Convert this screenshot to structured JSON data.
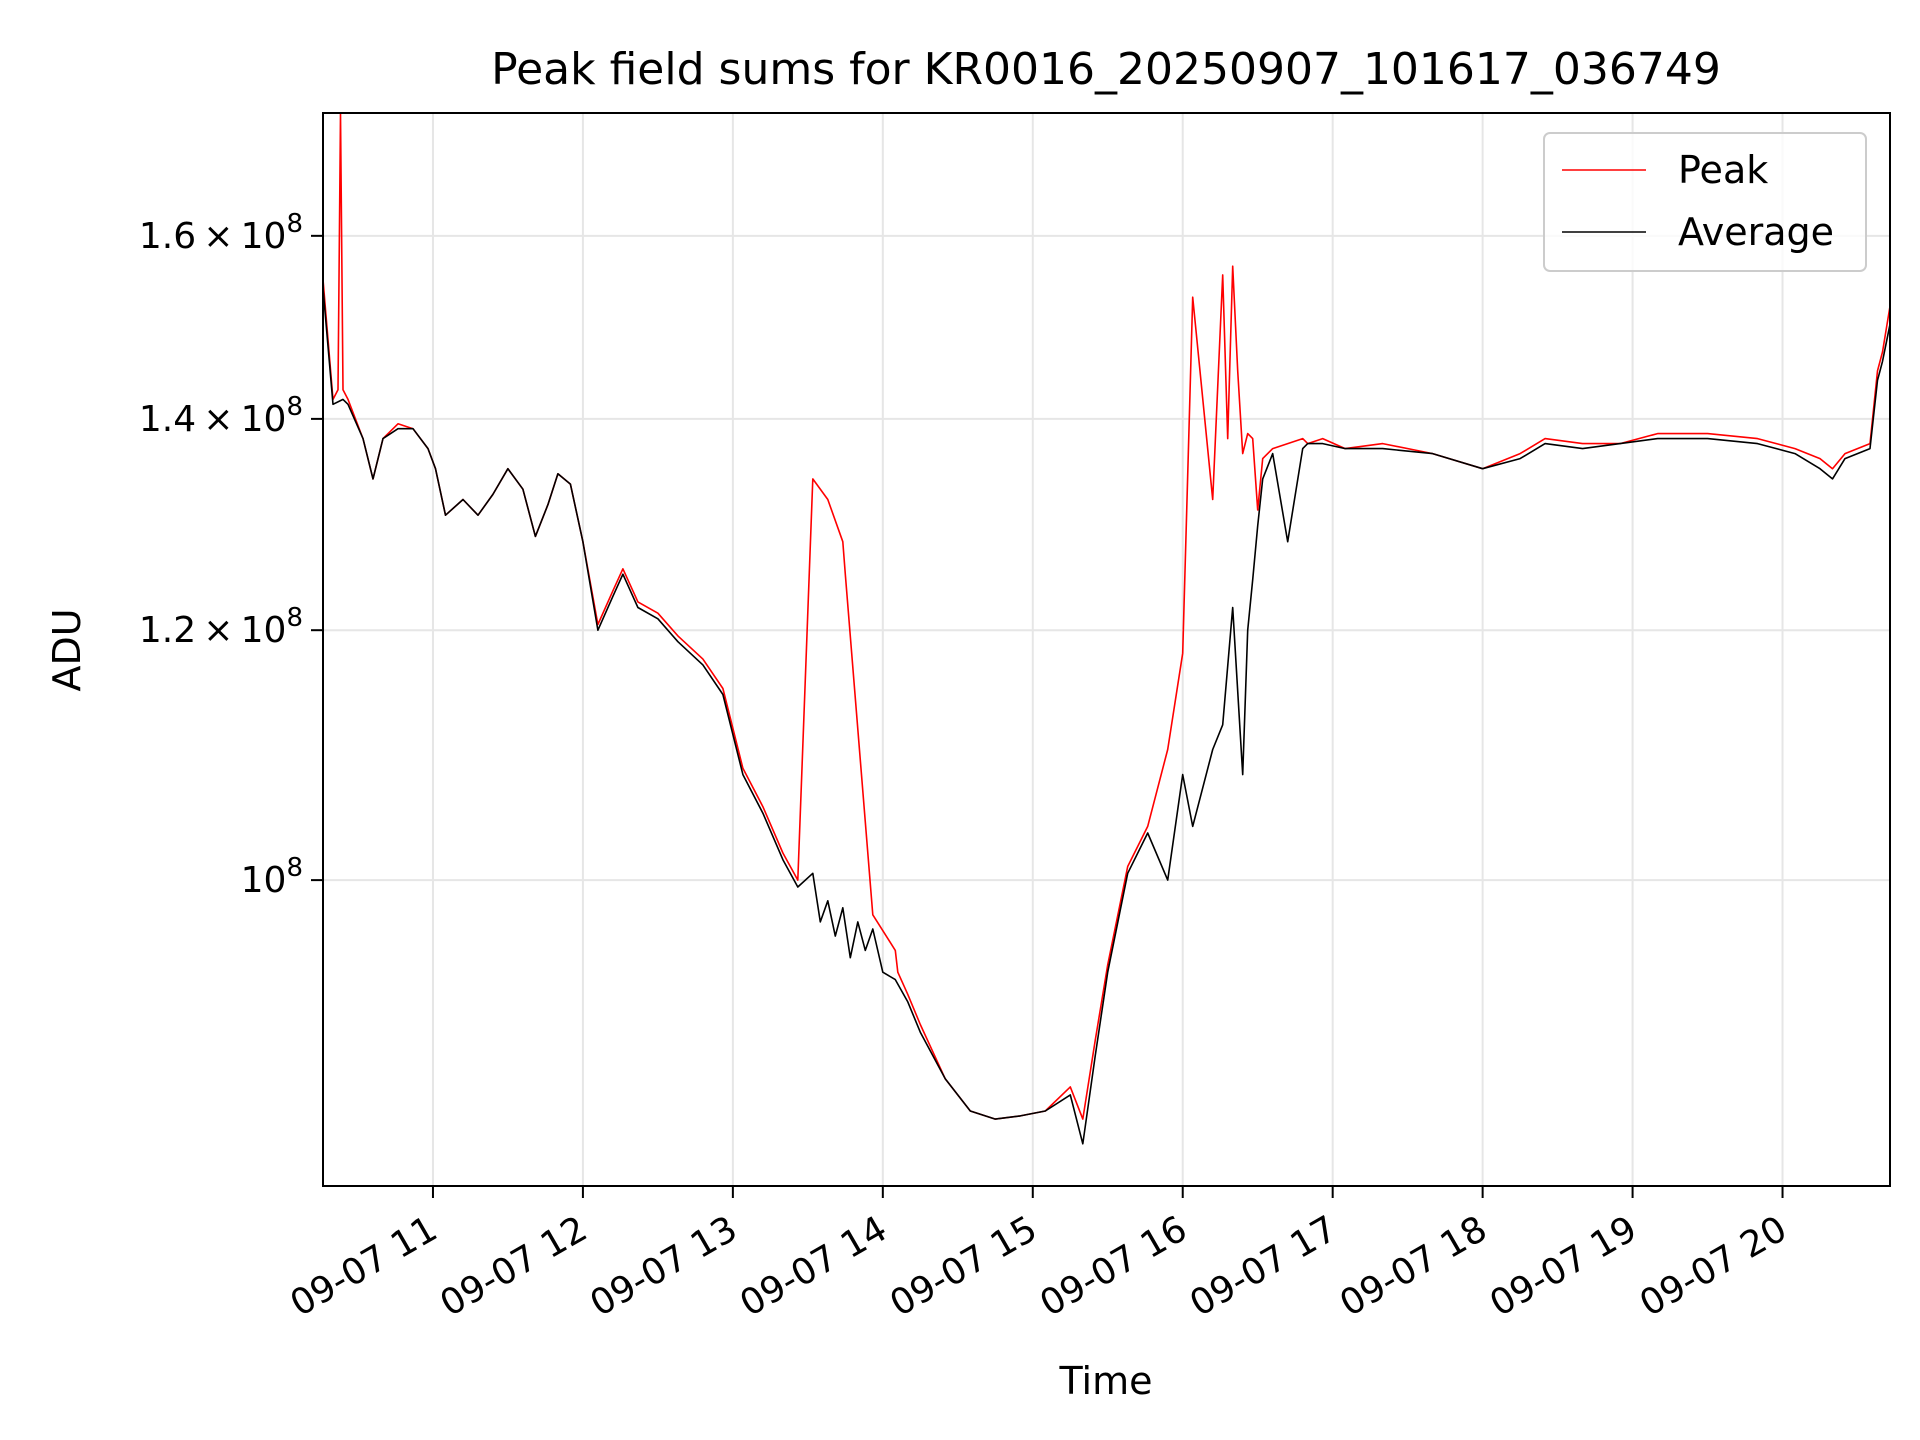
{
  "chart_data": {
    "type": "line",
    "title": "Peak field sums for KR0016_20250907_101617_036749",
    "xlabel": "Time",
    "ylabel": "ADU",
    "yscale": "log",
    "xlim": [
      "2025-09-07 10:16",
      "2025-09-07 20:43"
    ],
    "ylim": [
      80000000,
      175000000
    ],
    "grid": true,
    "legend_position": "top-right",
    "x_ticks": [
      {
        "value": "2025-09-07 11:00",
        "label": "09-07 11"
      },
      {
        "value": "2025-09-07 12:00",
        "label": "09-07 12"
      },
      {
        "value": "2025-09-07 13:00",
        "label": "09-07 13"
      },
      {
        "value": "2025-09-07 14:00",
        "label": "09-07 14"
      },
      {
        "value": "2025-09-07 15:00",
        "label": "09-07 15"
      },
      {
        "value": "2025-09-07 16:00",
        "label": "09-07 16"
      },
      {
        "value": "2025-09-07 17:00",
        "label": "09-07 17"
      },
      {
        "value": "2025-09-07 18:00",
        "label": "09-07 18"
      },
      {
        "value": "2025-09-07 19:00",
        "label": "09-07 19"
      },
      {
        "value": "2025-09-07 20:00",
        "label": "09-07 20"
      }
    ],
    "y_ticks": [
      {
        "value": 100000000,
        "mantissa": "",
        "exponent": "8"
      },
      {
        "value": 120000000,
        "mantissa": "1.2",
        "exponent": "8"
      },
      {
        "value": 140000000,
        "mantissa": "1.4",
        "exponent": "8"
      },
      {
        "value": 160000000,
        "mantissa": "1.6",
        "exponent": "8"
      }
    ],
    "series": [
      {
        "name": "Peak",
        "color": "#ff0000",
        "x": [
          "2025-09-07 10:16",
          "2025-09-07 10:20",
          "2025-09-07 10:22",
          "2025-09-07 10:23",
          "2025-09-07 10:24",
          "2025-09-07 10:26",
          "2025-09-07 10:32",
          "2025-09-07 10:36",
          "2025-09-07 10:40",
          "2025-09-07 10:46",
          "2025-09-07 10:52",
          "2025-09-07 10:58",
          "2025-09-07 11:01",
          "2025-09-07 11:05",
          "2025-09-07 11:12",
          "2025-09-07 11:18",
          "2025-09-07 11:24",
          "2025-09-07 11:30",
          "2025-09-07 11:36",
          "2025-09-07 11:41",
          "2025-09-07 11:46",
          "2025-09-07 11:50",
          "2025-09-07 11:55",
          "2025-09-07 12:00",
          "2025-09-07 12:06",
          "2025-09-07 12:12",
          "2025-09-07 12:16",
          "2025-09-07 12:22",
          "2025-09-07 12:30",
          "2025-09-07 12:38",
          "2025-09-07 12:48",
          "2025-09-07 12:56",
          "2025-09-07 13:04",
          "2025-09-07 13:12",
          "2025-09-07 13:20",
          "2025-09-07 13:26",
          "2025-09-07 13:32",
          "2025-09-07 13:38",
          "2025-09-07 13:44",
          "2025-09-07 13:45",
          "2025-09-07 13:56",
          "2025-09-07 14:05",
          "2025-09-07 14:06",
          "2025-09-07 14:10",
          "2025-09-07 14:15",
          "2025-09-07 14:25",
          "2025-09-07 14:35",
          "2025-09-07 14:45",
          "2025-09-07 14:55",
          "2025-09-07 15:05",
          "2025-09-07 15:15",
          "2025-09-07 15:20",
          "2025-09-07 15:25",
          "2025-09-07 15:30",
          "2025-09-07 15:38",
          "2025-09-07 15:46",
          "2025-09-07 15:54",
          "2025-09-07 16:00",
          "2025-09-07 16:04",
          "2025-09-07 16:12",
          "2025-09-07 16:16",
          "2025-09-07 16:18",
          "2025-09-07 16:20",
          "2025-09-07 16:22",
          "2025-09-07 16:24",
          "2025-09-07 16:26",
          "2025-09-07 16:28",
          "2025-09-07 16:30",
          "2025-09-07 16:32",
          "2025-09-07 16:36",
          "2025-09-07 16:42",
          "2025-09-07 16:48",
          "2025-09-07 16:50",
          "2025-09-07 16:56",
          "2025-09-07 17:05",
          "2025-09-07 17:20",
          "2025-09-07 17:40",
          "2025-09-07 18:00",
          "2025-09-07 18:15",
          "2025-09-07 18:25",
          "2025-09-07 18:40",
          "2025-09-07 18:55",
          "2025-09-07 19:10",
          "2025-09-07 19:30",
          "2025-09-07 19:50",
          "2025-09-07 20:05",
          "2025-09-07 20:15",
          "2025-09-07 20:20",
          "2025-09-07 20:25",
          "2025-09-07 20:30",
          "2025-09-07 20:35",
          "2025-09-07 20:38",
          "2025-09-07 20:40",
          "2025-09-07 20:43"
        ],
        "y": [
          155000000,
          142000000,
          143000000,
          175000000,
          143000000,
          142000000,
          138000000,
          134000000,
          138000000,
          139500000,
          139000000,
          137000000,
          135000000,
          130500000,
          132000000,
          130500000,
          132500000,
          135000000,
          133000000,
          128500000,
          131500000,
          134500000,
          133500000,
          128000000,
          120500000,
          123500000,
          125500000,
          122500000,
          121500000,
          119500000,
          117500000,
          115000000,
          108500000,
          105500000,
          102000000,
          100000000,
          134000000,
          132000000,
          128000000,
          125000000,
          97500000,
          95000000,
          93500000,
          92000000,
          90000000,
          86500000,
          84500000,
          84000000,
          84200000,
          84500000,
          86000000,
          84000000,
          89000000,
          94000000,
          101000000,
          104000000,
          110000000,
          118000000,
          153000000,
          132000000,
          155500000,
          138000000,
          156500000,
          145000000,
          136500000,
          138500000,
          138000000,
          131000000,
          136000000,
          137000000,
          137500000,
          138000000,
          137500000,
          138000000,
          137000000,
          137500000,
          136500000,
          135000000,
          136500000,
          138000000,
          137500000,
          137500000,
          138500000,
          138500000,
          138000000,
          137000000,
          136000000,
          135000000,
          136500000,
          137000000,
          137500000,
          145000000,
          147000000,
          152000000
        ]
      },
      {
        "name": "Average",
        "color": "#000000",
        "x": [
          "2025-09-07 10:16",
          "2025-09-07 10:20",
          "2025-09-07 10:24",
          "2025-09-07 10:26",
          "2025-09-07 10:32",
          "2025-09-07 10:36",
          "2025-09-07 10:40",
          "2025-09-07 10:46",
          "2025-09-07 10:52",
          "2025-09-07 10:58",
          "2025-09-07 11:01",
          "2025-09-07 11:05",
          "2025-09-07 11:12",
          "2025-09-07 11:18",
          "2025-09-07 11:24",
          "2025-09-07 11:30",
          "2025-09-07 11:36",
          "2025-09-07 11:41",
          "2025-09-07 11:46",
          "2025-09-07 11:50",
          "2025-09-07 11:55",
          "2025-09-07 12:00",
          "2025-09-07 12:06",
          "2025-09-07 12:12",
          "2025-09-07 12:16",
          "2025-09-07 12:22",
          "2025-09-07 12:30",
          "2025-09-07 12:38",
          "2025-09-07 12:48",
          "2025-09-07 12:56",
          "2025-09-07 13:04",
          "2025-09-07 13:12",
          "2025-09-07 13:20",
          "2025-09-07 13:26",
          "2025-09-07 13:32",
          "2025-09-07 13:35",
          "2025-09-07 13:38",
          "2025-09-07 13:41",
          "2025-09-07 13:44",
          "2025-09-07 13:47",
          "2025-09-07 13:50",
          "2025-09-07 13:53",
          "2025-09-07 13:56",
          "2025-09-07 14:00",
          "2025-09-07 14:05",
          "2025-09-07 14:10",
          "2025-09-07 14:15",
          "2025-09-07 14:25",
          "2025-09-07 14:35",
          "2025-09-07 14:45",
          "2025-09-07 14:55",
          "2025-09-07 15:05",
          "2025-09-07 15:15",
          "2025-09-07 15:20",
          "2025-09-07 15:25",
          "2025-09-07 15:30",
          "2025-09-07 15:38",
          "2025-09-07 15:46",
          "2025-09-07 15:54",
          "2025-09-07 16:00",
          "2025-09-07 16:04",
          "2025-09-07 16:12",
          "2025-09-07 16:16",
          "2025-09-07 16:20",
          "2025-09-07 16:24",
          "2025-09-07 16:26",
          "2025-09-07 16:28",
          "2025-09-07 16:30",
          "2025-09-07 16:32",
          "2025-09-07 16:36",
          "2025-09-07 16:42",
          "2025-09-07 16:48",
          "2025-09-07 16:50",
          "2025-09-07 16:56",
          "2025-09-07 17:05",
          "2025-09-07 17:20",
          "2025-09-07 17:40",
          "2025-09-07 18:00",
          "2025-09-07 18:15",
          "2025-09-07 18:25",
          "2025-09-07 18:40",
          "2025-09-07 18:55",
          "2025-09-07 19:10",
          "2025-09-07 19:30",
          "2025-09-07 19:50",
          "2025-09-07 20:05",
          "2025-09-07 20:15",
          "2025-09-07 20:20",
          "2025-09-07 20:25",
          "2025-09-07 20:30",
          "2025-09-07 20:35",
          "2025-09-07 20:38",
          "2025-09-07 20:40",
          "2025-09-07 20:43"
        ],
        "y": [
          154000000,
          141500000,
          142000000,
          141500000,
          138000000,
          134000000,
          138000000,
          139000000,
          139000000,
          137000000,
          135000000,
          130500000,
          132000000,
          130500000,
          132500000,
          135000000,
          133000000,
          128500000,
          131500000,
          134500000,
          133500000,
          128000000,
          120000000,
          123000000,
          125000000,
          122000000,
          121000000,
          119000000,
          117000000,
          114500000,
          108000000,
          105000000,
          101500000,
          99500000,
          100500000,
          97000000,
          98500000,
          96000000,
          98000000,
          94500000,
          97000000,
          95000000,
          96500000,
          93500000,
          93000000,
          91500000,
          89500000,
          86500000,
          84500000,
          84000000,
          84200000,
          84500000,
          85500000,
          82500000,
          88000000,
          93500000,
          100500000,
          103500000,
          100000000,
          108000000,
          104000000,
          110000000,
          112000000,
          122000000,
          108000000,
          120000000,
          124500000,
          129500000,
          134000000,
          136500000,
          128000000,
          137000000,
          137500000,
          137500000,
          137000000,
          137000000,
          136500000,
          135000000,
          136000000,
          137500000,
          137000000,
          137500000,
          138000000,
          138000000,
          137500000,
          136500000,
          135000000,
          134000000,
          136000000,
          136500000,
          137000000,
          144000000,
          146000000,
          150000000
        ]
      }
    ]
  }
}
